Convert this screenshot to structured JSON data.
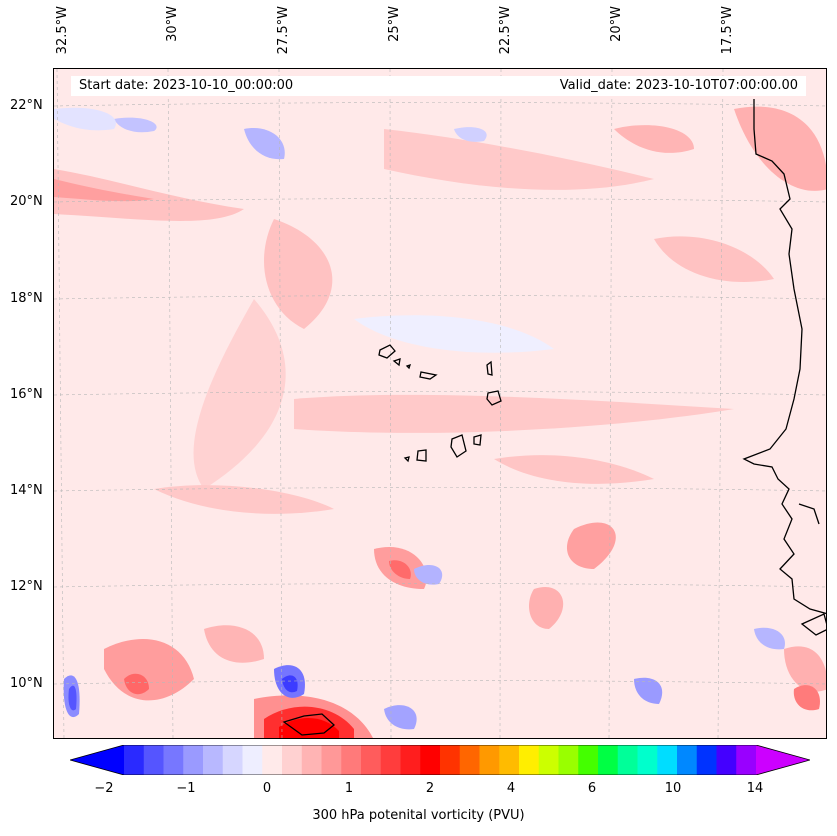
{
  "map": {
    "start_date_label": "Start date: 2023-10-10_00:00:00",
    "valid_date_label": "Valid_date: 2023-10-10T07:00:00.00",
    "lon_ticks": [
      "32.5°W",
      "30°W",
      "27.5°W",
      "25°W",
      "22.5°W",
      "20°W",
      "17.5°W"
    ],
    "lat_ticks": [
      "22°N",
      "20°N",
      "18°N",
      "16°N",
      "14°N",
      "12°N",
      "10°N"
    ],
    "coastline_color": "#000000",
    "gridline_style": "dashed-gray"
  },
  "colorbar": {
    "title": "300 hPa potenital vorticity (PVU)",
    "tick_labels": [
      "−2",
      "−1",
      "0",
      "1",
      "2",
      "4",
      "6",
      "10",
      "14"
    ],
    "colors": [
      "#0000ff",
      "#2a2aff",
      "#5555ff",
      "#7777ff",
      "#9a9aff",
      "#b8b8ff",
      "#d6d6ff",
      "#eeeeff",
      "#ffeaea",
      "#ffd1d1",
      "#ffb4b4",
      "#ff9898",
      "#ff7a7a",
      "#ff5c5c",
      "#ff3d3d",
      "#ff1e1e",
      "#ff0000",
      "#ff3300",
      "#ff6600",
      "#ff9900",
      "#ffbb00",
      "#ffee00",
      "#ccff00",
      "#99ff00",
      "#44ff00",
      "#00ff44",
      "#00ff99",
      "#00ffcc",
      "#00ddff",
      "#0088ff",
      "#0033ff",
      "#4400ff",
      "#9900ff",
      "#cc00ff"
    ]
  }
}
